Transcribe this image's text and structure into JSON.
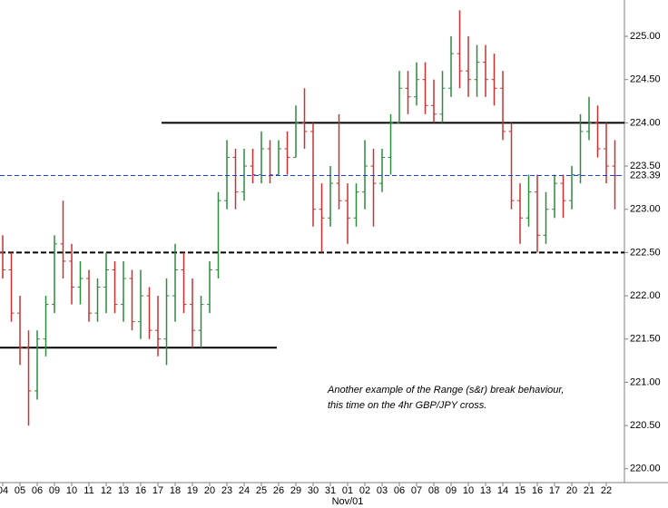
{
  "chart_data": {
    "type": "ohlc",
    "categories": [
      "04",
      "05",
      "06",
      "09",
      "10",
      "11",
      "12",
      "13",
      "16",
      "17",
      "18",
      "19",
      "20",
      "23",
      "24",
      "25",
      "26",
      "29",
      "30",
      "31",
      "01",
      "02",
      "03",
      "06",
      "07",
      "08",
      "09",
      "10",
      "13",
      "14",
      "15",
      "16",
      "17",
      "20",
      "21",
      "22"
    ],
    "month_label": "Nov/01",
    "open": [
      222.5,
      222.3,
      221.8,
      221.4,
      220.9,
      221.5,
      221.9,
      222.6,
      222.4,
      222.1,
      222.2,
      221.8,
      222.1,
      222.3,
      221.9,
      222.2,
      221.7,
      222.0,
      221.6,
      221.5,
      222.0,
      222.3,
      221.9,
      221.6,
      221.9,
      222.3,
      223.1,
      223.6,
      223.2,
      223.5,
      223.4,
      223.7,
      223.4,
      223.7,
      223.6,
      224.0,
      223.9,
      223.0,
      222.9,
      223.3,
      223.1,
      222.9,
      223.2,
      223.5,
      223.3,
      223.6,
      224.0,
      224.4,
      224.3,
      224.5,
      224.2,
      224.1,
      224.4,
      224.8,
      224.6,
      224.5,
      224.7,
      224.5,
      224.4,
      223.9,
      223.1,
      222.9,
      223.2,
      222.7,
      223.0,
      223.3,
      223.1,
      223.4,
      223.9,
      224.0,
      223.7,
      223.5
    ],
    "high": [
      222.7,
      222.5,
      222.0,
      221.6,
      221.6,
      222.0,
      222.7,
      223.1,
      222.6,
      222.4,
      222.3,
      222.2,
      222.5,
      222.4,
      222.4,
      222.3,
      222.3,
      222.1,
      222.0,
      222.2,
      222.6,
      222.5,
      222.2,
      222.0,
      222.4,
      223.2,
      223.8,
      223.7,
      223.7,
      223.7,
      223.9,
      223.8,
      223.8,
      223.9,
      224.2,
      224.4,
      224.0,
      223.3,
      223.5,
      224.1,
      223.3,
      223.3,
      223.8,
      223.7,
      223.7,
      224.1,
      224.6,
      224.6,
      224.7,
      224.7,
      224.5,
      224.6,
      225.0,
      225.3,
      225.0,
      224.9,
      224.9,
      224.8,
      224.6,
      224.0,
      223.3,
      223.4,
      223.4,
      223.2,
      223.4,
      223.4,
      223.5,
      224.1,
      224.3,
      224.2,
      224.0,
      223.8
    ],
    "low": [
      222.2,
      221.7,
      221.2,
      220.5,
      220.8,
      221.3,
      221.8,
      222.2,
      221.9,
      221.9,
      221.7,
      221.7,
      221.8,
      221.8,
      221.7,
      221.6,
      221.5,
      221.5,
      221.3,
      221.2,
      221.7,
      221.8,
      221.4,
      221.4,
      221.8,
      222.2,
      223.0,
      223.0,
      223.1,
      223.3,
      223.3,
      223.3,
      223.4,
      223.4,
      223.6,
      223.7,
      222.8,
      222.5,
      222.8,
      223.0,
      222.6,
      222.8,
      223.0,
      222.8,
      223.2,
      223.4,
      224.0,
      224.1,
      224.2,
      224.1,
      224.0,
      224.0,
      224.3,
      224.4,
      224.3,
      224.3,
      224.3,
      224.2,
      223.8,
      223.0,
      222.6,
      222.8,
      222.5,
      222.6,
      222.9,
      222.9,
      223.0,
      223.3,
      223.8,
      223.6,
      223.3,
      223.0
    ],
    "close": [
      222.3,
      221.8,
      221.4,
      220.9,
      221.5,
      221.9,
      222.6,
      222.4,
      222.1,
      222.2,
      221.8,
      222.1,
      222.3,
      221.9,
      222.2,
      221.7,
      222.0,
      221.6,
      221.5,
      222.0,
      222.3,
      221.9,
      221.6,
      221.9,
      222.3,
      223.1,
      223.6,
      223.2,
      223.5,
      223.4,
      223.7,
      223.4,
      223.7,
      223.6,
      224.0,
      223.9,
      223.0,
      222.9,
      223.3,
      223.1,
      222.9,
      223.2,
      223.5,
      223.3,
      223.6,
      224.0,
      224.4,
      224.3,
      224.5,
      224.2,
      224.1,
      224.4,
      224.8,
      224.6,
      224.5,
      224.7,
      224.5,
      224.4,
      223.9,
      223.1,
      222.9,
      223.2,
      222.7,
      223.0,
      223.3,
      223.1,
      223.4,
      223.9,
      224.0,
      223.7,
      223.5,
      223.39
    ],
    "up_color": "#2e8b3e",
    "down_color": "#c83232",
    "levels": [
      224.0,
      222.5,
      221.4
    ],
    "current_price": 223.39,
    "current_color": "#1f3fd6",
    "ylim": [
      219.84,
      225.42
    ],
    "yticks": [
      {
        "value": 220,
        "label": "220.00"
      },
      {
        "value": 220.5,
        "label": "220.50"
      },
      {
        "value": 221,
        "label": "221.00"
      },
      {
        "value": 221.5,
        "label": "221.50"
      },
      {
        "value": 222,
        "label": "222.00"
      },
      {
        "value": 222.5,
        "label": "222.50"
      },
      {
        "value": 223,
        "label": "223.00"
      },
      {
        "value": 223.5,
        "label": "223.50"
      },
      {
        "value": 224,
        "label": "224.00"
      },
      {
        "value": 224.5,
        "label": "224.50"
      },
      {
        "value": 225,
        "label": "225.00"
      }
    ],
    "annotation": [
      "Another example of the Range (s&r) break behaviour,",
      "this time on the 4hr GBP/JPY cross."
    ]
  }
}
